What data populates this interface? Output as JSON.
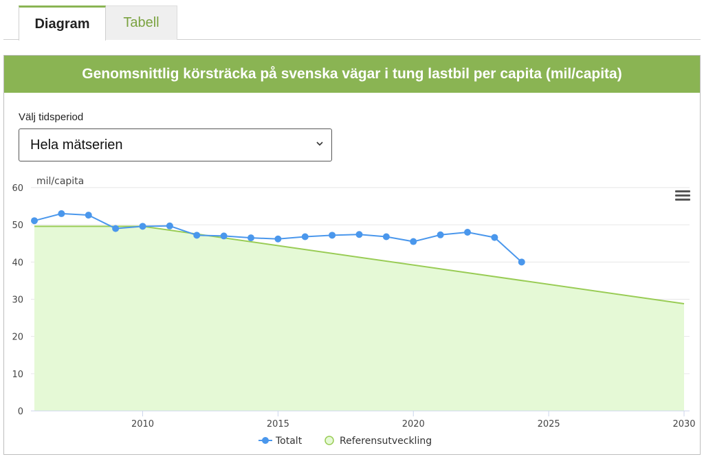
{
  "tabs": [
    {
      "label": "Diagram"
    },
    {
      "label": "Tabell"
    }
  ],
  "panel": {
    "title": "Genomsnittlig körsträcka på svenska vägar i tung lastbil per capita (mil/capita)"
  },
  "period": {
    "label": "Välj tidsperiod",
    "selected": "Hela mätserien"
  },
  "colors": {
    "accent": "#8ab453",
    "series_totalt": "#4a97ec",
    "reference_line": "#99cc55",
    "reference_fill": "#e5f9d6"
  },
  "chart_data": {
    "type": "line",
    "ylabel": "mil/capita",
    "xlabel": "",
    "ylim": [
      0,
      60
    ],
    "xlim": [
      2006,
      2030
    ],
    "y_ticks": [
      0,
      10,
      20,
      30,
      40,
      50,
      60
    ],
    "x_ticks": [
      2010,
      2015,
      2020,
      2025,
      2030
    ],
    "grid": true,
    "legend_position": "bottom-center",
    "series": [
      {
        "name": "Totalt",
        "type": "line",
        "x": [
          2006,
          2007,
          2008,
          2009,
          2010,
          2011,
          2012,
          2013,
          2014,
          2015,
          2016,
          2017,
          2018,
          2019,
          2020,
          2021,
          2022,
          2023,
          2024
        ],
        "values": [
          51.1,
          53.0,
          52.6,
          49.0,
          49.6,
          49.7,
          47.2,
          47.0,
          46.5,
          46.2,
          46.8,
          47.2,
          47.4,
          46.8,
          45.5,
          47.3,
          48.0,
          46.6,
          40.0
        ]
      },
      {
        "name": "Referensutveckling",
        "type": "area",
        "x": [
          2006,
          2010,
          2030
        ],
        "values": [
          49.6,
          49.6,
          28.8
        ]
      }
    ]
  }
}
